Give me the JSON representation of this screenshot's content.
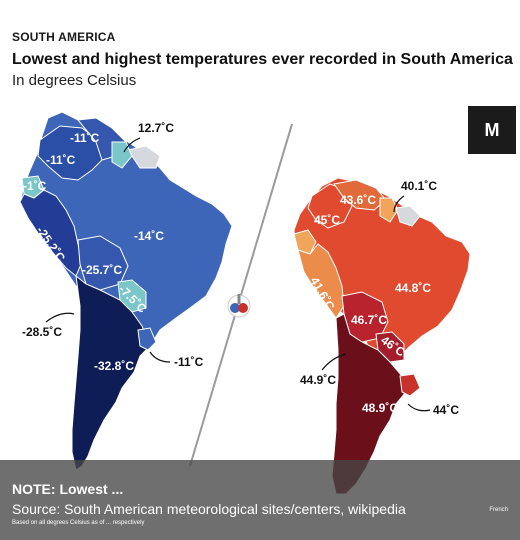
{
  "header": {
    "kicker": "SOUTH AMERICA",
    "title": "Lowest and highest temperatures ever recorded in South America",
    "subtitle": "In degrees Celsius"
  },
  "brand": {
    "logo_text": "M"
  },
  "maps": {
    "lowest": {
      "labels": {
        "l1": "-11˚C",
        "l2": "-11˚C",
        "l3": "12.7˚C",
        "l4": "-1˚C",
        "l5": "-14˚C",
        "l6": "-25.2˚C",
        "l7": "-25.7˚C",
        "l8": "-7.5˚C",
        "l9": "-28.5˚C",
        "l10": "-32.8˚C",
        "l11": "-11˚C"
      }
    },
    "highest": {
      "labels": {
        "h1": "43.6˚C",
        "h2": "45˚C",
        "h3": "40.1˚C",
        "h4": "41.6˚C",
        "h5": "44.8˚C",
        "h6": "46.7˚C",
        "h7": "46˚C",
        "h8": "44.9˚C",
        "h9": "48.9˚C",
        "h10": "44˚C"
      }
    }
  },
  "colors": {
    "cold_dark": "#0f1d56",
    "cold_mid": "#233d97",
    "cold_light": "#3e66b8",
    "cold_teal": "#7bc6c9",
    "hot_dark": "#6b0f1a",
    "hot_mid": "#c7332a",
    "hot_light": "#e04a2f",
    "hot_orange": "#ec8c4a",
    "neutral": "#d5d9de"
  },
  "footer": {
    "note": "NOTE: Lowest ...",
    "source": "Source: South American meteorological sites/centers, wikipedia",
    "right": "French",
    "tiny": "Based on all degrees Celsius as of ... respectively"
  }
}
